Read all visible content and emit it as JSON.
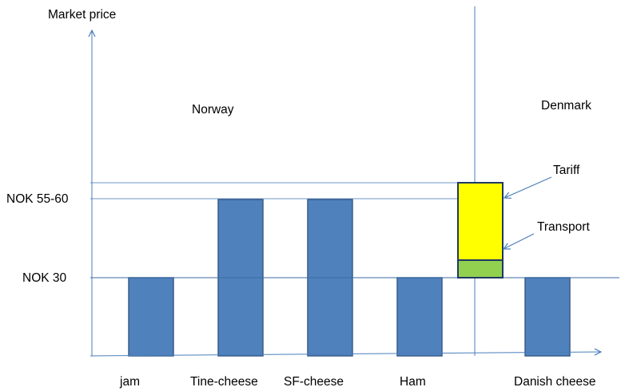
{
  "chart_data": {
    "type": "bar",
    "ylabel": "Market price",
    "regions": [
      "Norway",
      "Denmark"
    ],
    "categories": [
      "jam",
      "Tine-cheese",
      "SF-cheese",
      "Ham",
      "Danish cheese"
    ],
    "values": [
      30,
      60,
      60,
      30,
      30
    ],
    "reference_lines": [
      {
        "label": "NOK 30",
        "value": 30
      },
      {
        "label": "NOK 55-60",
        "value": 60
      }
    ],
    "imported_bar": {
      "base": 30,
      "segments": [
        {
          "name": "Transport",
          "value": 6,
          "color": "#92d050"
        },
        {
          "name": "Tariff",
          "value": 30,
          "color": "#ffff00"
        }
      ]
    },
    "colors": {
      "bar": "#4f81bd",
      "bar_edge": "#385d8a",
      "axis": "#4a7ebb",
      "gridline": "#6f97c9"
    }
  }
}
